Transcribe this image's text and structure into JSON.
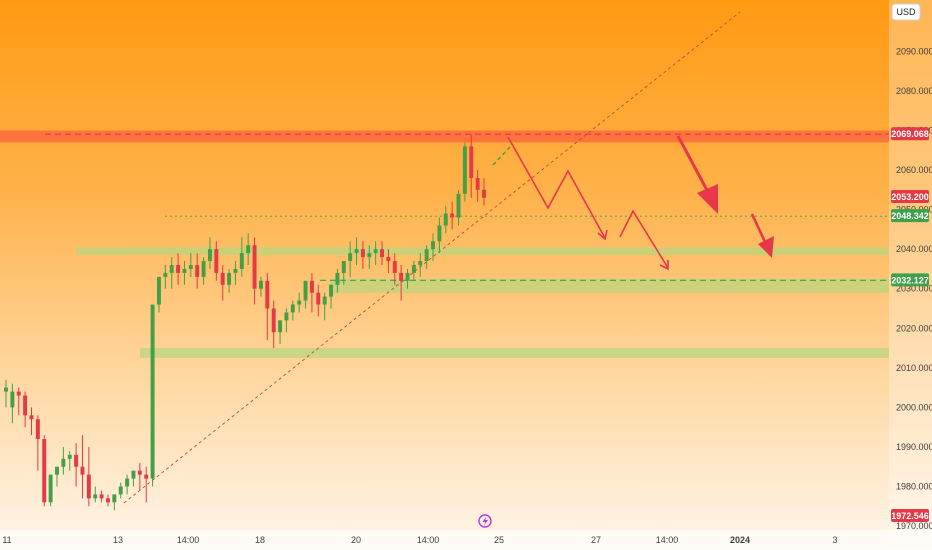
{
  "chart_data": {
    "type": "candlestick",
    "currency": "USD",
    "y_axis": {
      "range": [
        1969,
        2103
      ],
      "ticks": [
        "2090.000",
        "2080.000",
        "2070.000",
        "2060.000",
        "2050.000",
        "2040.000",
        "2030.000",
        "2020.000",
        "2010.000",
        "2000.000",
        "1990.000",
        "1980.000",
        "1970.000"
      ]
    },
    "x_axis": {
      "ticks": [
        "11",
        "13",
        "14:00",
        "18",
        "20",
        "14:00",
        "25",
        "27",
        "14:00",
        "2024",
        "3"
      ]
    },
    "price_badges": [
      {
        "label": "2069.068",
        "value": 2069.068,
        "color": "#e53945"
      },
      {
        "label": "2053.200",
        "value": 2053.2,
        "color": "#e53945"
      },
      {
        "label": "2048.342",
        "value": 2048.342,
        "color": "#3fa14a"
      },
      {
        "label": "2032.127",
        "value": 2032.127,
        "color": "#3fa14a"
      },
      {
        "label": "1972.546",
        "value": 1972.546,
        "color": "#e53945"
      }
    ],
    "zones": [
      {
        "kind": "resistance",
        "from": 2067,
        "to": 2070,
        "color": "#ff6a3d"
      },
      {
        "kind": "support",
        "from": 2038.5,
        "to": 2040.5,
        "color": "#b9d67c"
      },
      {
        "kind": "support",
        "from": 2029,
        "to": 2032.5,
        "color": "#b9d67c"
      },
      {
        "kind": "support",
        "from": 2012.5,
        "to": 2015,
        "color": "#b9d67c"
      }
    ],
    "levels": [
      {
        "value": 2069.068,
        "style": "dashed",
        "color": "#e53945"
      },
      {
        "value": 2048.342,
        "style": "dotted",
        "color": "#3fa14a"
      },
      {
        "value": 2032.127,
        "style": "dashed",
        "color": "#3fa14a"
      }
    ],
    "candles": [
      [
        2004,
        2007,
        2005,
        2000
      ],
      [
        2000,
        2006,
        2004,
        1996
      ],
      [
        2004,
        2005,
        2003,
        1998
      ],
      [
        2003,
        2004,
        1998,
        1995
      ],
      [
        1998,
        2000,
        1997,
        1993
      ],
      [
        1997,
        1998,
        1992,
        1984
      ],
      [
        1992,
        1993,
        1976,
        1975
      ],
      [
        1976,
        1982,
        1983,
        1975
      ],
      [
        1983,
        1985,
        1985,
        1980
      ],
      [
        1985,
        1990,
        1987,
        1983
      ],
      [
        1987,
        1989,
        1988,
        1984
      ],
      [
        1988,
        1991,
        1985,
        1980
      ],
      [
        1985,
        1993,
        1983,
        1977
      ],
      [
        1983,
        1990,
        1977,
        1975
      ],
      [
        1977,
        1980,
        1978,
        1976
      ],
      [
        1978,
        1979,
        1977,
        1976
      ],
      [
        1977,
        1978,
        1976,
        1975
      ],
      [
        1976,
        1978,
        1978,
        1974
      ],
      [
        1978,
        1981,
        1980,
        1977
      ],
      [
        1980,
        1983,
        1982,
        1978
      ],
      [
        1982,
        1984,
        1984,
        1980
      ],
      [
        1984,
        1986,
        1983,
        1979
      ],
      [
        1983,
        1985,
        1982,
        1976
      ],
      [
        1982,
        2019,
        2026,
        1980
      ],
      [
        2026,
        2031,
        2033,
        2024
      ],
      [
        2033,
        2036,
        2034,
        2030
      ],
      [
        2034,
        2038,
        2036,
        2030
      ],
      [
        2036,
        2039,
        2034,
        2031
      ],
      [
        2034,
        2037,
        2035,
        2031
      ],
      [
        2035,
        2039,
        2036,
        2033
      ],
      [
        2036,
        2039,
        2033,
        2030
      ],
      [
        2033,
        2038,
        2037,
        2031
      ],
      [
        2037,
        2043,
        2040,
        2035
      ],
      [
        2040,
        2042,
        2034,
        2032
      ],
      [
        2034,
        2036,
        2031,
        2027
      ],
      [
        2031,
        2035,
        2034,
        2029
      ],
      [
        2034,
        2037,
        2035,
        2031
      ],
      [
        2035,
        2043,
        2039,
        2033
      ],
      [
        2039,
        2044,
        2041,
        2036
      ],
      [
        2041,
        2043,
        2030,
        2026
      ],
      [
        2030,
        2033,
        2032,
        2028
      ],
      [
        2032,
        2034,
        2025,
        2017
      ],
      [
        2025,
        2027,
        2019,
        2015
      ],
      [
        2019,
        2022,
        2022,
        2016
      ],
      [
        2022,
        2025,
        2024,
        2019
      ],
      [
        2024,
        2027,
        2026,
        2022
      ],
      [
        2026,
        2029,
        2027,
        2024
      ],
      [
        2027,
        2032,
        2032,
        2025
      ],
      [
        2032,
        2034,
        2029,
        2024
      ],
      [
        2029,
        2031,
        2026,
        2023
      ],
      [
        2026,
        2029,
        2028,
        2022
      ],
      [
        2028,
        2031,
        2031,
        2025
      ],
      [
        2031,
        2035,
        2034,
        2029
      ],
      [
        2034,
        2037,
        2037,
        2031
      ],
      [
        2037,
        2042,
        2039,
        2033
      ],
      [
        2039,
        2043,
        2040,
        2036
      ],
      [
        2040,
        2042,
        2038,
        2035
      ],
      [
        2038,
        2041,
        2039,
        2035
      ],
      [
        2039,
        2042,
        2040,
        2036
      ],
      [
        2040,
        2042,
        2038,
        2036
      ],
      [
        2038,
        2040,
        2037,
        2034
      ],
      [
        2037,
        2039,
        2034,
        2031
      ],
      [
        2034,
        2036,
        2032,
        2027
      ],
      [
        2032,
        2035,
        2034,
        2030
      ],
      [
        2034,
        2037,
        2036,
        2032
      ],
      [
        2036,
        2039,
        2037,
        2033
      ],
      [
        2037,
        2041,
        2040,
        2035
      ],
      [
        2040,
        2044,
        2042,
        2037
      ],
      [
        2042,
        2048,
        2046,
        2039
      ],
      [
        2046,
        2051,
        2049,
        2044
      ],
      [
        2049,
        2052,
        2048,
        2045
      ],
      [
        2048,
        2055,
        2054,
        2046
      ],
      [
        2054,
        2067,
        2066,
        2052
      ],
      [
        2066,
        2069,
        2058,
        2053
      ],
      [
        2058,
        2060,
        2055,
        2052
      ],
      [
        2055,
        2058,
        2053,
        2051
      ]
    ]
  }
}
